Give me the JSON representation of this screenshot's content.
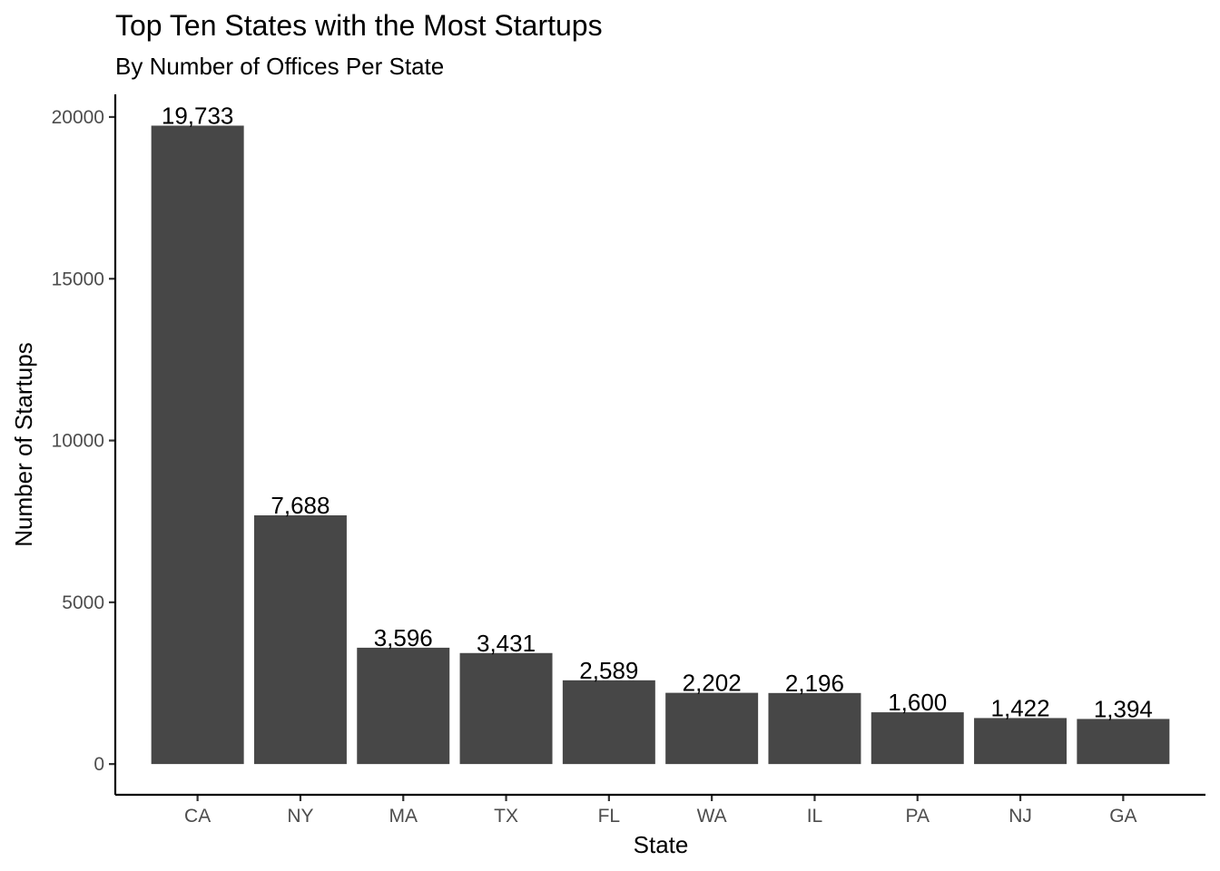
{
  "chart_data": {
    "type": "bar",
    "title": "Top Ten States with the Most Startups",
    "subtitle": "By Number of Offices Per State",
    "xlabel": "State",
    "ylabel": "Number of Startups",
    "categories": [
      "CA",
      "NY",
      "MA",
      "TX",
      "FL",
      "WA",
      "IL",
      "PA",
      "NJ",
      "GA"
    ],
    "values": [
      19733,
      7688,
      3596,
      3431,
      2589,
      2202,
      2196,
      1600,
      1422,
      1394
    ],
    "data_labels": [
      "19,733",
      "7,688",
      "3,596",
      "3,431",
      "2,589",
      "2,202",
      "2,196",
      "1,600",
      "1,422",
      "1,394"
    ],
    "y_ticks": [
      0,
      5000,
      10000,
      15000,
      20000
    ],
    "y_tick_labels": [
      "0",
      "5000",
      "10000",
      "15000",
      "20000"
    ],
    "ylim": [
      -950,
      20700
    ],
    "grid": false,
    "legend": "none",
    "bar_color": "#474747"
  }
}
